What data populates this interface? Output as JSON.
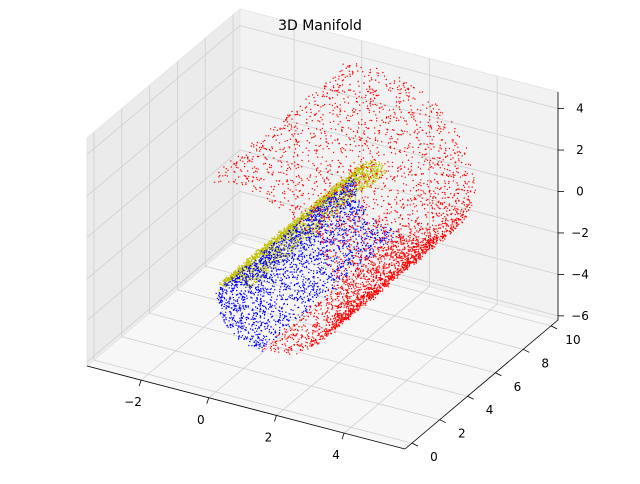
{
  "chart_data": {
    "type": "scatter",
    "title": "3D Manifold",
    "projection": "3d",
    "grid": true,
    "xlabel": "",
    "ylabel": "",
    "zlabel": "",
    "xlim": [
      -3.6,
      5.8
    ],
    "ylim": [
      -0.5,
      10.5
    ],
    "zlim": [
      -6.2,
      4.8
    ],
    "x_ticks": [
      -2,
      0,
      2,
      4
    ],
    "x_tick_labels": [
      "−2",
      "0",
      "2",
      "4"
    ],
    "y_ticks": [
      0,
      2,
      4,
      6,
      8,
      10
    ],
    "y_tick_labels": [
      "0",
      "2",
      "4",
      "6",
      "8",
      "10"
    ],
    "z_ticks": [
      -6,
      -4,
      -2,
      0,
      2,
      4
    ],
    "z_tick_labels": [
      "−6",
      "−4",
      "−2",
      "0",
      "2",
      "4"
    ],
    "series": [
      {
        "color": "#bfbf00",
        "t_range": [
          1.5,
          3.1
        ],
        "points_shown": 2200
      },
      {
        "color": "#0000ff",
        "t_range": [
          3.1,
          4.6
        ],
        "points_shown": 2200
      },
      {
        "color": "#ff0000",
        "t_range": [
          4.6,
          7.9
        ],
        "points_shown": 3600
      }
    ],
    "surface": "swiss roll: x = -(t - 4.6)*cos(t)*0.4 + 1, z = (t - 4.6)*sin(t)*0.62 - 1, y uniform in ylim"
  }
}
